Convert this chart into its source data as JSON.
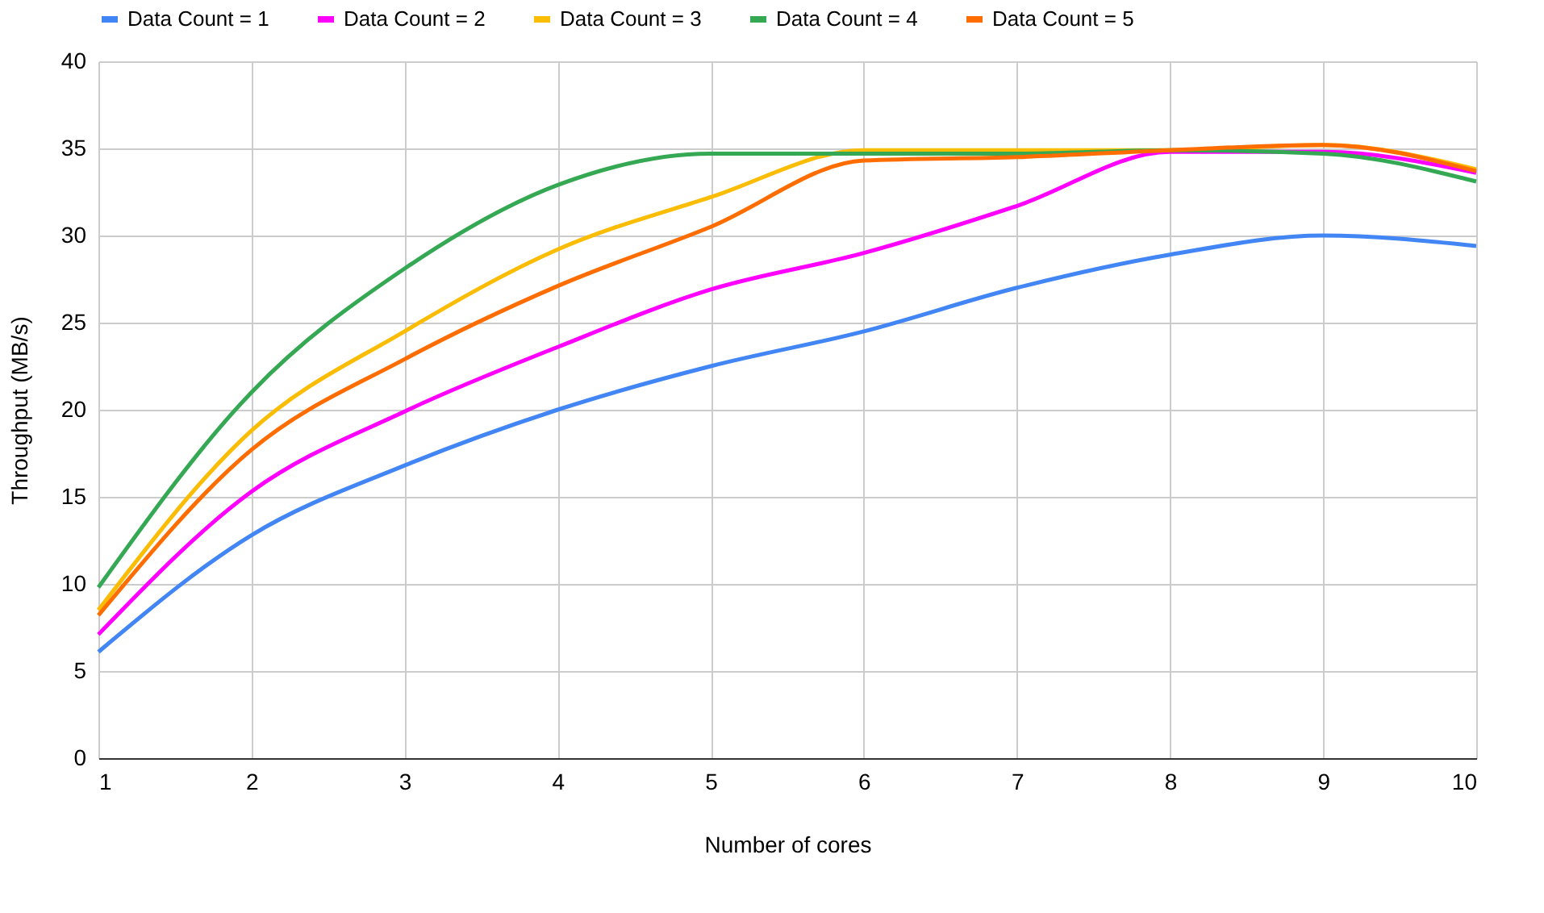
{
  "chart_data": {
    "type": "line",
    "xlabel": "Number of cores",
    "ylabel": "Throughput (MB/s)",
    "x": [
      1,
      2,
      3,
      4,
      5,
      6,
      7,
      8,
      9,
      10
    ],
    "xlim": [
      1,
      10
    ],
    "xticks": [
      1,
      2,
      3,
      4,
      5,
      6,
      7,
      8,
      9,
      10
    ],
    "ylim": [
      0,
      40
    ],
    "yticks": [
      0,
      5,
      10,
      15,
      20,
      25,
      30,
      35,
      40
    ],
    "grid": true,
    "legend": "top",
    "marker": "none",
    "line_style": "solid",
    "series": [
      {
        "name": "Data Count = 1",
        "color": "#4285f4",
        "values": [
          6.1,
          12.8,
          16.8,
          20.0,
          22.5,
          24.5,
          27.0,
          28.9,
          30.0,
          29.4
        ]
      },
      {
        "name": "Data Count = 2",
        "color": "#ff00ff",
        "values": [
          7.1,
          15.3,
          19.9,
          23.6,
          26.9,
          29.0,
          31.7,
          34.8,
          34.8,
          33.6
        ]
      },
      {
        "name": "Data Count = 3",
        "color": "#fbbc04",
        "values": [
          8.5,
          18.8,
          24.5,
          29.2,
          32.2,
          34.9,
          34.9,
          34.9,
          35.2,
          33.8
        ]
      },
      {
        "name": "Data Count = 4",
        "color": "#34a853",
        "values": [
          9.8,
          21.0,
          28.1,
          32.9,
          34.7,
          34.7,
          34.7,
          34.9,
          34.7,
          33.1
        ]
      },
      {
        "name": "Data Count = 5",
        "color": "#ff6d01",
        "values": [
          8.2,
          17.7,
          22.9,
          27.1,
          30.5,
          34.3,
          34.5,
          34.9,
          35.2,
          33.7
        ]
      }
    ]
  }
}
